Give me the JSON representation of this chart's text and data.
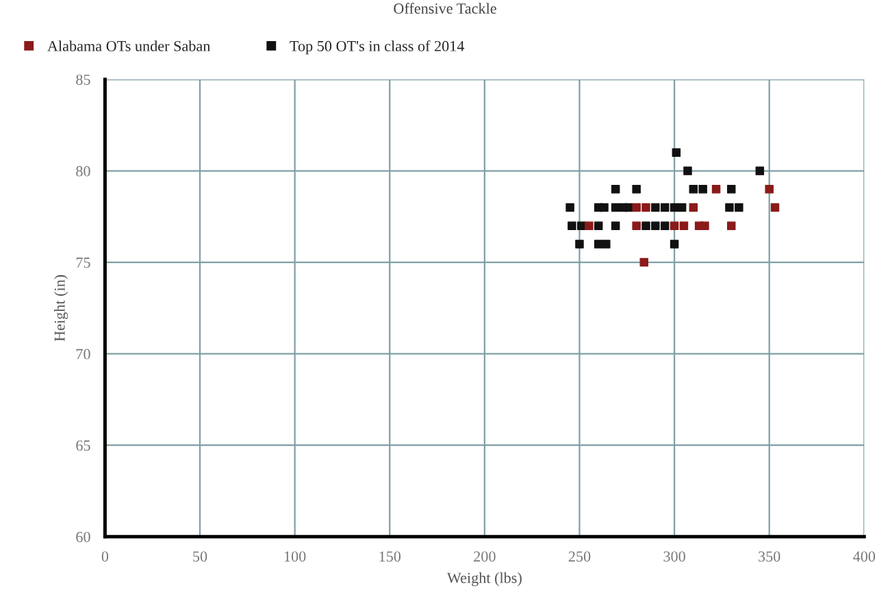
{
  "chart_data": {
    "type": "scatter",
    "title": "Offensive Tackle",
    "xlabel": "Weight (lbs)",
    "ylabel": "Height (in)",
    "xlim": [
      0,
      400
    ],
    "xticks": [
      0,
      50,
      100,
      150,
      200,
      250,
      300,
      350,
      400
    ],
    "ylim": [
      60,
      85
    ],
    "yticks": [
      60,
      65,
      70,
      75,
      80,
      85
    ],
    "grid": true,
    "legend": "top left",
    "marker": "square",
    "series": [
      {
        "name": "Alabama OTs under Saban",
        "color": "#8b1a1a",
        "x": [
          322,
          350,
          280,
          285,
          310,
          353,
          255,
          280,
          300,
          305,
          313,
          316,
          330,
          284
        ],
        "values": [
          79,
          79,
          78,
          78,
          78,
          78,
          77,
          77,
          77,
          77,
          77,
          77,
          77,
          75
        ]
      },
      {
        "name": "Top 50 OT's in class of 2014",
        "color": "#111111",
        "x": [
          301,
          307,
          345,
          269,
          280,
          310,
          315,
          330,
          245,
          260,
          263,
          269,
          273,
          276,
          290,
          295,
          300,
          304,
          329,
          334,
          246,
          251,
          260,
          269,
          285,
          290,
          295,
          250,
          260,
          264,
          300
        ],
        "values": [
          81,
          80,
          80,
          79,
          79,
          79,
          79,
          79,
          78,
          78,
          78,
          78,
          78,
          78,
          78,
          78,
          78,
          78,
          78,
          78,
          77,
          77,
          77,
          77,
          77,
          77,
          77,
          76,
          76,
          76,
          76
        ]
      }
    ]
  }
}
